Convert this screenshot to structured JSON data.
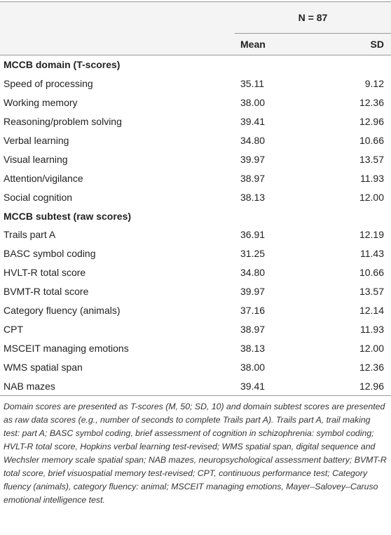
{
  "header": {
    "group": "N = 87",
    "columns": [
      "Mean",
      "SD"
    ]
  },
  "sections": [
    {
      "title": "MCCB domain (T-scores)",
      "rows": [
        [
          "Speed of processing",
          "35.11",
          "9.12"
        ],
        [
          "Working memory",
          "38.00",
          "12.36"
        ],
        [
          "Reasoning/problem solving",
          "39.41",
          "12.96"
        ],
        [
          "Verbal learning",
          "34.80",
          "10.66"
        ],
        [
          "Visual learning",
          "39.97",
          "13.57"
        ],
        [
          "Attention/vigilance",
          "38.97",
          "11.93"
        ],
        [
          "Social cognition",
          "38.13",
          "12.00"
        ]
      ]
    },
    {
      "title": "MCCB subtest (raw scores)",
      "rows": [
        [
          "Trails part A",
          "36.91",
          "12.19"
        ],
        [
          "BASC symbol coding",
          "31.25",
          "11.43"
        ],
        [
          "HVLT-R total score",
          "34.80",
          "10.66"
        ],
        [
          "BVMT-R total score",
          "39.97",
          "13.57"
        ],
        [
          "Category fluency (animals)",
          "37.16",
          "12.14"
        ],
        [
          "CPT",
          "38.97",
          "11.93"
        ],
        [
          "MSCEIT managing emotions",
          "38.13",
          "12.00"
        ],
        [
          "WMS spatial span",
          "38.00",
          "12.36"
        ],
        [
          "NAB mazes",
          "39.41",
          "12.96"
        ]
      ]
    }
  ],
  "footnote": "Domain scores are presented as T-scores (M, 50; SD, 10) and domain subtest scores are presented as raw data scores (e.g., number of seconds to complete Trails part A). Trails part A, trail making test: part A; BASC symbol coding, brief assessment of cognition in schizophrenia: symbol coding; HVLT-R total score, Hopkins verbal learning test-revised; WMS spatial span, digital sequence and Wechsler memory scale spatial span; NAB mazes, neuropsychological assessment battery; BVMT-R total score, brief visuospatial memory test-revised; CPT, continuous performance test; Category fluency (animals), category fluency: animal; MSCEIT managing emotions, Mayer–Salovey–Caruso emotional intelligence test."
}
